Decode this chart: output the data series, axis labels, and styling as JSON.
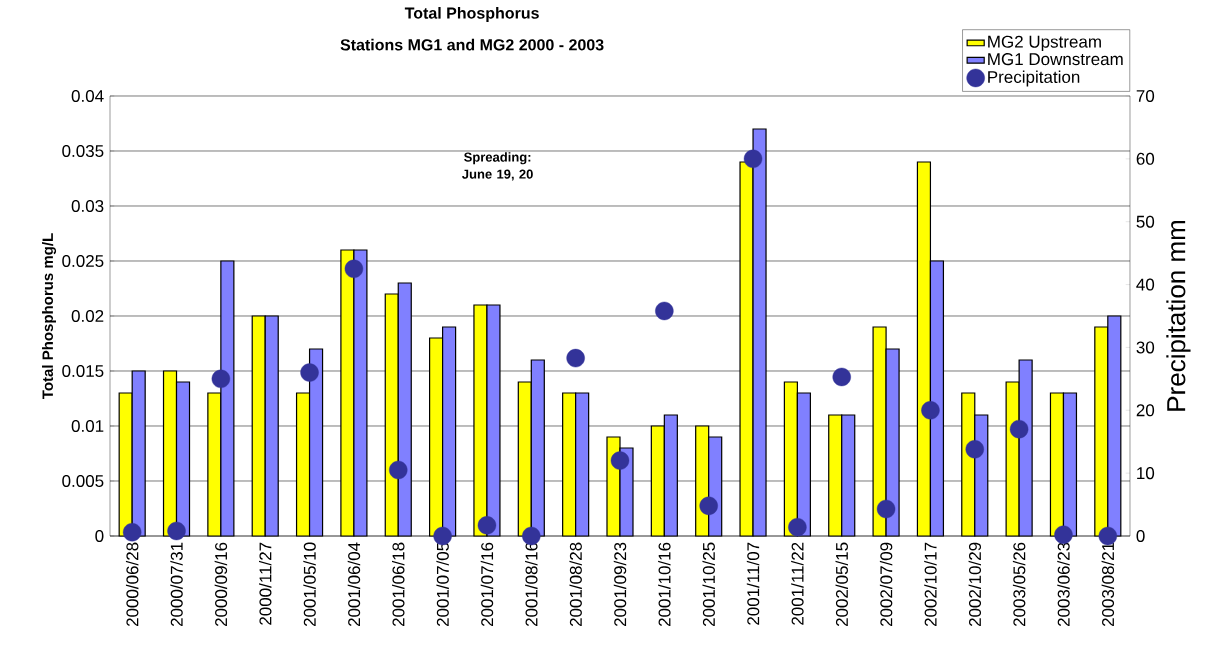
{
  "chart_data": {
    "type": "bar",
    "title": "Total Phosphorus",
    "subtitle": "Stations MG1 and MG2 2000 - 2003",
    "ylabel": "Total Phosphorus  mg/L",
    "y2label": "Precipitation  mm",
    "categories": [
      "2000/06/28",
      "2000/07/31",
      "2000/09/16",
      "2000/11/27",
      "2001/05/10",
      "2001/06/04",
      "2001/06/18",
      "2001/07/05",
      "2001/07/16",
      "2001/08/16",
      "2001/08/28",
      "2001/09/23",
      "2001/10/16",
      "2001/10/25",
      "2001/11/07",
      "2001/11/22",
      "2002/05/15",
      "2002/07/09",
      "2002/10/17",
      "2002/10/29",
      "2003/05/26",
      "2003/06/23",
      "2003/08/21"
    ],
    "series": [
      {
        "name": "MG2 Upstream",
        "color": "#ffff00",
        "values": [
          0.013,
          0.015,
          0.013,
          0.02,
          0.013,
          0.026,
          0.022,
          0.018,
          0.021,
          0.014,
          0.013,
          0.009,
          0.01,
          0.01,
          0.034,
          0.014,
          0.011,
          0.019,
          0.034,
          0.013,
          0.014,
          0.013,
          0.019
        ]
      },
      {
        "name": "MG1 Downstream",
        "color": "#8080ff",
        "values": [
          0.015,
          0.014,
          0.025,
          0.02,
          0.017,
          0.026,
          0.023,
          0.019,
          0.021,
          0.016,
          0.013,
          0.008,
          0.011,
          0.009,
          0.037,
          0.013,
          0.011,
          0.017,
          0.025,
          0.011,
          0.016,
          0.013,
          0.02
        ]
      },
      {
        "name": "Precipitation",
        "type": "scatter",
        "axis": "y2",
        "marker": "circle",
        "color": "#333399",
        "values": [
          0.6,
          0.8,
          25,
          null,
          26,
          42.5,
          10.5,
          0,
          1.7,
          0,
          28.3,
          12,
          35.8,
          4.8,
          60,
          1.4,
          25.3,
          4.3,
          20,
          13.8,
          17,
          0.2,
          0
        ]
      }
    ],
    "ylim": [
      0,
      0.04
    ],
    "yticks": [
      0,
      0.005,
      0.01,
      0.015,
      0.02,
      0.025,
      0.03,
      0.035,
      0.04
    ],
    "y2lim": [
      0,
      70
    ],
    "y2ticks": [
      0,
      10,
      20,
      30,
      40,
      50,
      60,
      70
    ],
    "grid": "y",
    "legend": "top right",
    "annotations": [
      "Spreading: June 19, 20"
    ]
  }
}
